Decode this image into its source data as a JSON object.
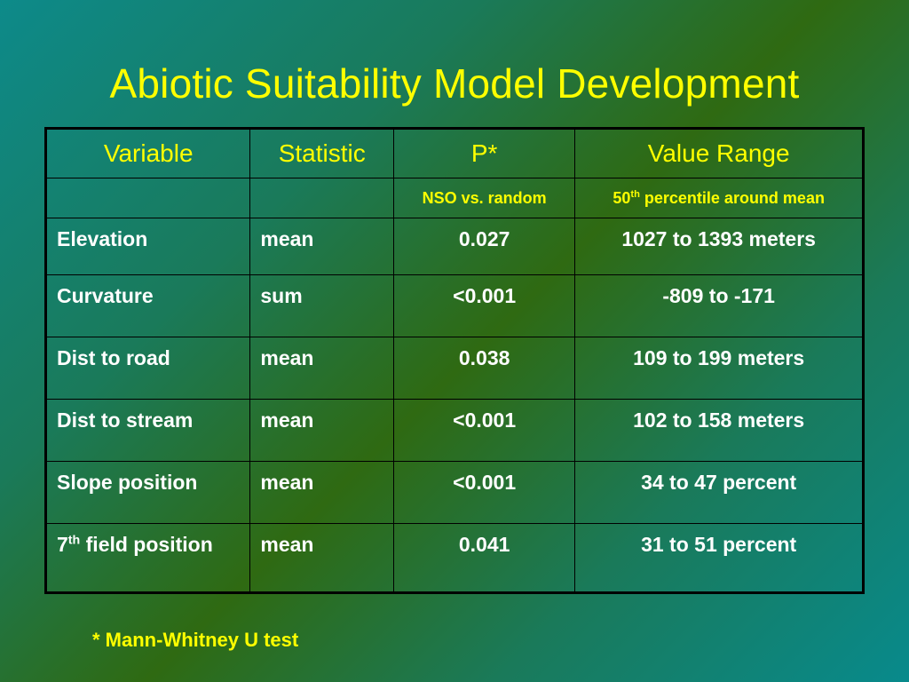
{
  "slide": {
    "title": "Abiotic Suitability Model Development",
    "footnote": "* Mann-Whitney U test"
  },
  "table": {
    "headers": [
      "Variable",
      "Statistic",
      "P*",
      "Value Range"
    ],
    "subheader": {
      "variable": "",
      "statistic": "",
      "p": "NSO vs. random",
      "range_number": "50",
      "range_sup": "th",
      "range_text": " percentile around mean"
    },
    "rows": [
      {
        "variable": "Elevation",
        "statistic": "mean",
        "p": "0.027",
        "range": "1027 to 1393 meters"
      },
      {
        "variable": "Curvature",
        "statistic": "sum",
        "p": "<0.001",
        "range": "-809 to -171"
      },
      {
        "variable": "Dist to road",
        "statistic": "mean",
        "p": "0.038",
        "range": "109 to 199 meters"
      },
      {
        "variable": "Dist to stream",
        "statistic": "mean",
        "p": "<0.001",
        "range": "102 to 158 meters"
      },
      {
        "variable": "Slope position",
        "statistic": "mean",
        "p": "<0.001",
        "range": "34 to 47 percent"
      }
    ],
    "last_row": {
      "variable_number": "7",
      "variable_sup": "th",
      "variable_text": " field position",
      "statistic": "mean",
      "p": "0.041",
      "range": "31 to 51 percent"
    }
  },
  "colors": {
    "title": "#ffff00",
    "header_text": "#ffff00",
    "cell_text": "#ffffff",
    "border": "#000000",
    "background_teal": "#0d8a8a",
    "background_green": "#2f6a12"
  }
}
